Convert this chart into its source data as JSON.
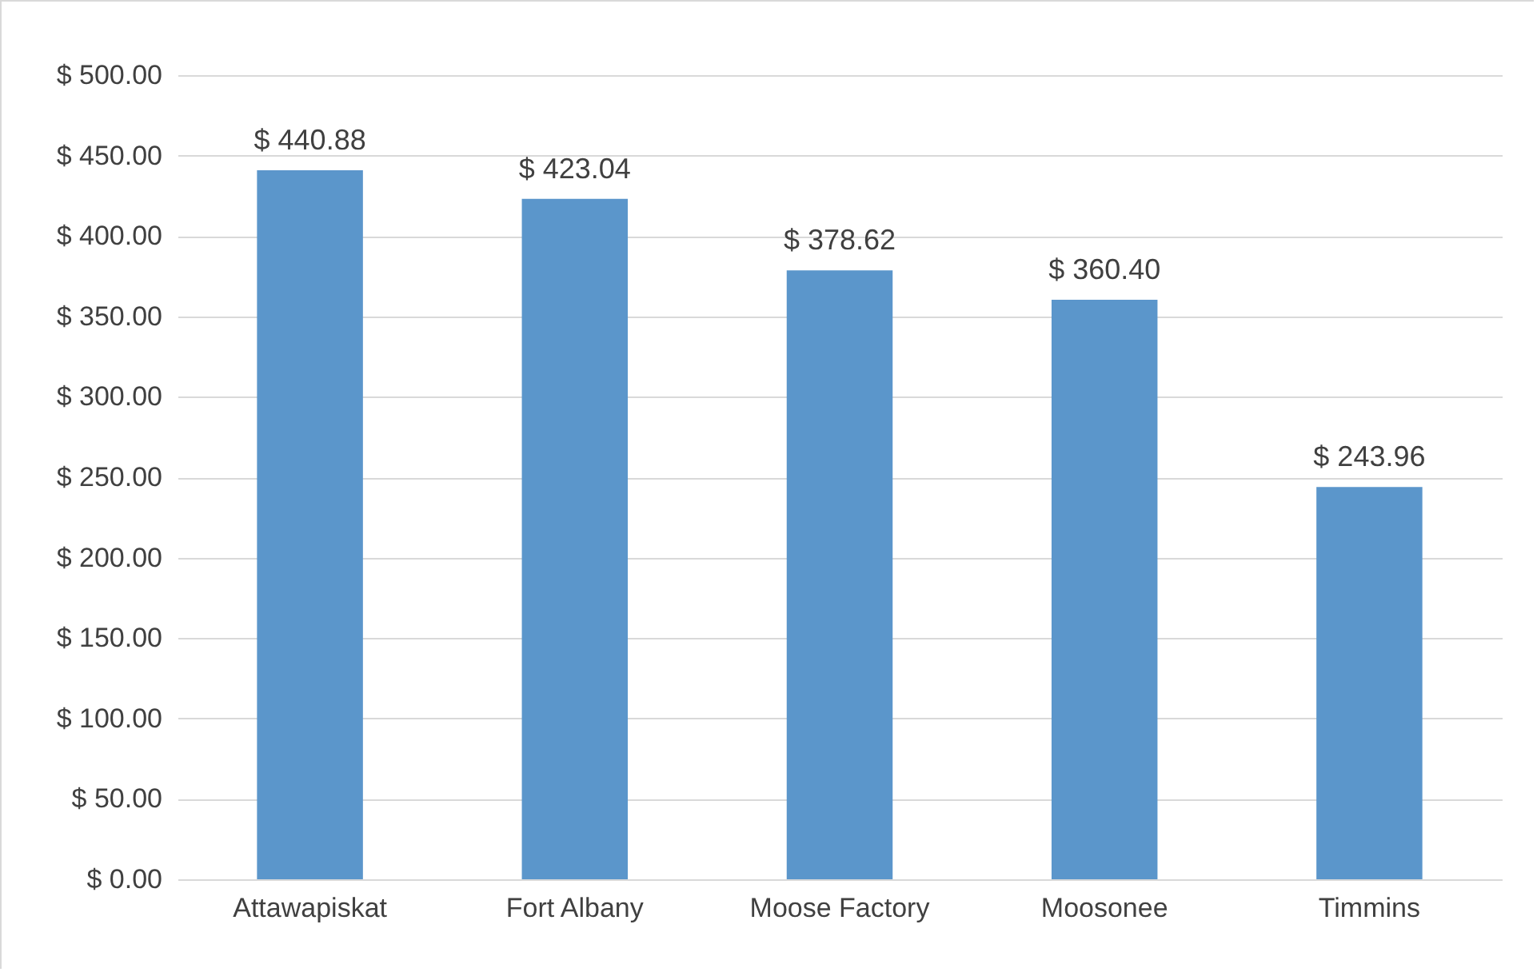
{
  "chart_data": {
    "type": "bar",
    "categories": [
      "Attawapiskat",
      "Fort Albany",
      "Moose Factory",
      "Moosonee",
      "Timmins"
    ],
    "values": [
      440.88,
      423.04,
      378.62,
      360.4,
      243.96
    ],
    "value_labels": [
      "$ 440.88",
      "$ 423.04",
      "$ 378.62",
      "$ 360.40",
      "$ 243.96"
    ],
    "color": "#5b96cb",
    "ylim": [
      0,
      500
    ],
    "yticks": [
      {
        "value": 0,
        "label": "$ 0.00"
      },
      {
        "value": 50,
        "label": "$ 50.00"
      },
      {
        "value": 100,
        "label": "$ 100.00"
      },
      {
        "value": 150,
        "label": "$ 150.00"
      },
      {
        "value": 200,
        "label": "$ 200.00"
      },
      {
        "value": 250,
        "label": "$ 250.00"
      },
      {
        "value": 300,
        "label": "$ 300.00"
      },
      {
        "value": 350,
        "label": "$ 350.00"
      },
      {
        "value": 400,
        "label": "$ 400.00"
      },
      {
        "value": 450,
        "label": "$ 450.00"
      },
      {
        "value": 500,
        "label": "$ 500.00"
      }
    ],
    "grid": "y"
  }
}
